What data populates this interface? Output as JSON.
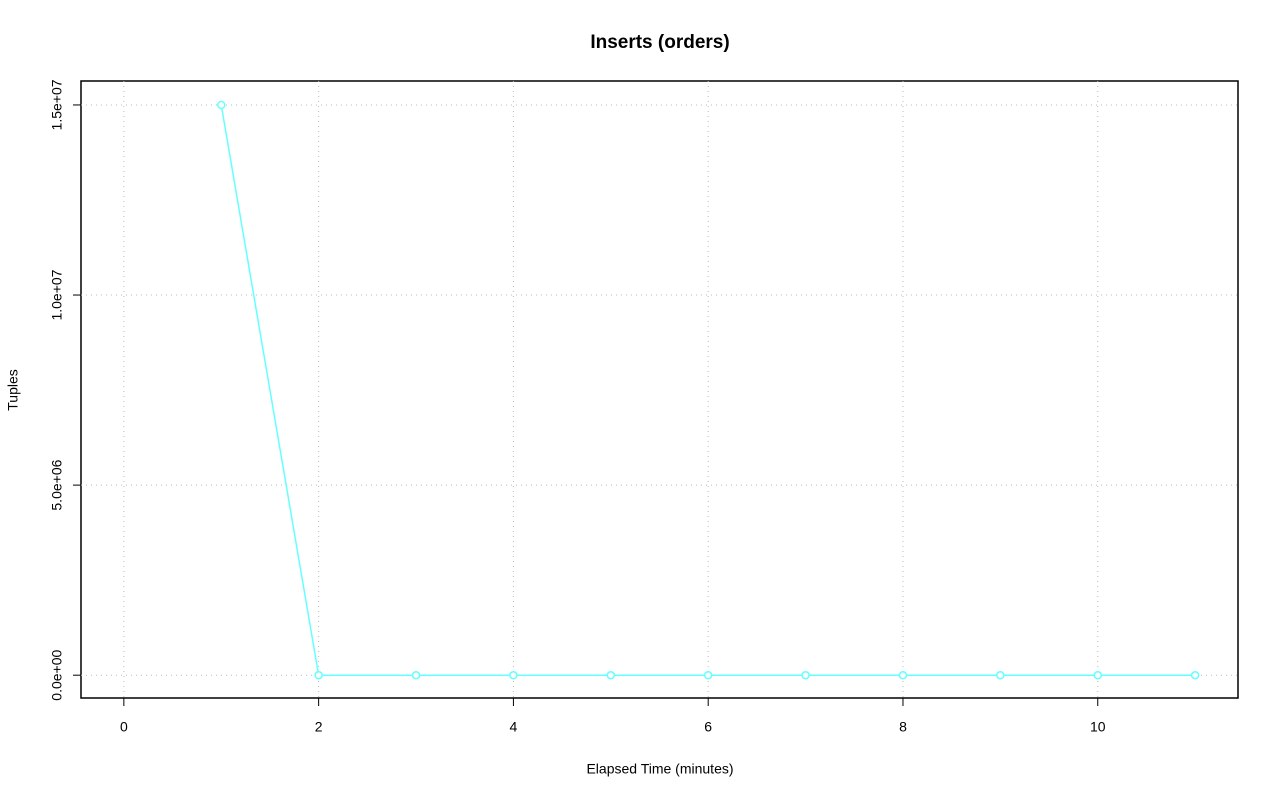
{
  "chart_data": {
    "type": "line",
    "title": "Inserts (orders)",
    "x_label": "Elapsed Time (minutes)",
    "y_label": "Tuples",
    "x": [
      1,
      2,
      3,
      4,
      5,
      6,
      7,
      8,
      9,
      10,
      11
    ],
    "series": [
      {
        "name": "orders",
        "color": "#66ffff",
        "values": [
          15000000,
          0,
          0,
          0,
          0,
          0,
          0,
          0,
          0,
          0,
          0
        ]
      }
    ],
    "xlim": [
      -0.44,
      11.44
    ],
    "ylim": [
      -600000,
      15630000
    ],
    "xticks": [
      0,
      2,
      4,
      6,
      8,
      10
    ],
    "yticks": [
      {
        "value": 0,
        "label": "0.0e+00"
      },
      {
        "value": 5000000,
        "label": "5.0e+06"
      },
      {
        "value": 10000000,
        "label": "1.0e+07"
      },
      {
        "value": 15000000,
        "label": "1.5e+07"
      }
    ],
    "grid": true
  }
}
